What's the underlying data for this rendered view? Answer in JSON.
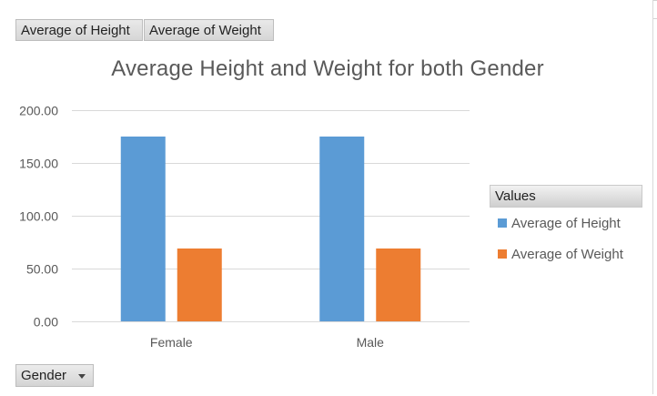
{
  "field_buttons": {
    "height_label": "Average of Height",
    "weight_label": "Average of Weight"
  },
  "axis_field": {
    "label": "Gender",
    "icon": "dropdown-arrow-icon"
  },
  "legend": {
    "header": "Values"
  },
  "colors": {
    "height": "#5b9bd5",
    "weight": "#ed7d31",
    "gridline": "#d9d9d9",
    "axis_text": "#595959"
  },
  "chart_data": {
    "type": "bar",
    "title": "Average Height and Weight for both Gender",
    "categories": [
      "Female",
      "Male"
    ],
    "series": [
      {
        "name": "Average of Height",
        "values": [
          175,
          175
        ]
      },
      {
        "name": "Average of Weight",
        "values": [
          69,
          69
        ]
      }
    ],
    "ylim": [
      0,
      200
    ],
    "yticks": [
      "0.00",
      "50.00",
      "100.00",
      "150.00",
      "200.00"
    ],
    "xlabel": "",
    "ylabel": "",
    "grid": true,
    "legend_position": "right"
  }
}
